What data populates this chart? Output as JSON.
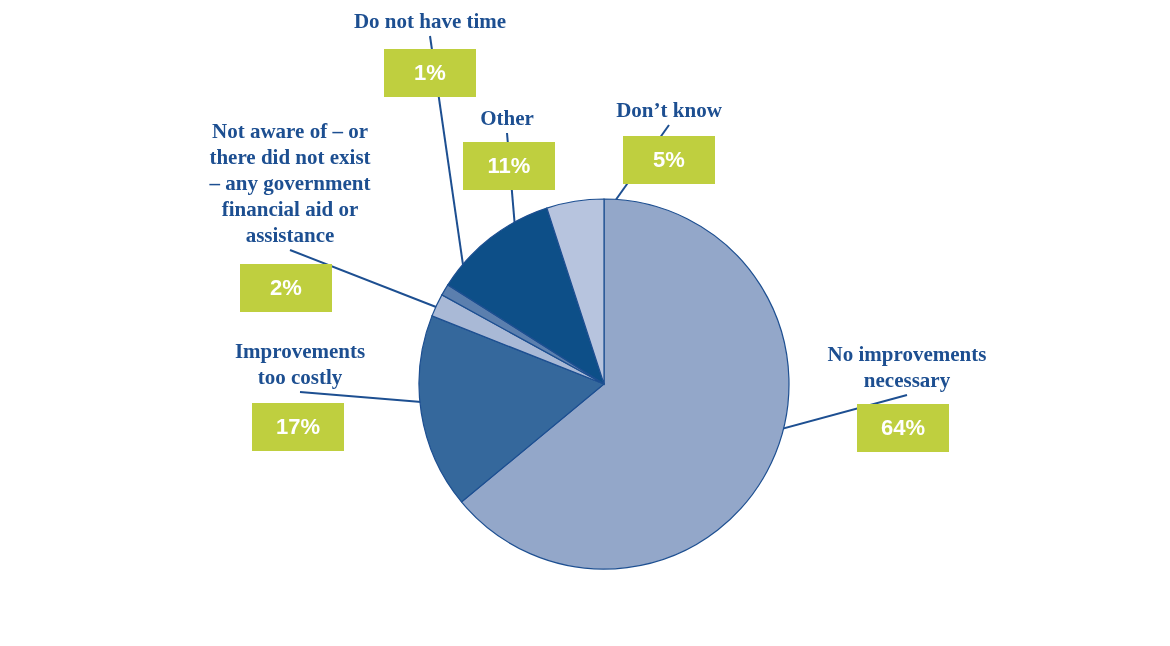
{
  "chart_data": {
    "type": "pie",
    "categories": [
      "No improvements necessary",
      "Improvements too costly",
      "Not aware of – or there did not exist – any government financial aid or assistance",
      "Do not have time",
      "Other",
      "Don’t know"
    ],
    "values": [
      64,
      17,
      2,
      1,
      11,
      5
    ],
    "value_labels": [
      "64%",
      "17%",
      "2%",
      "1%",
      "11%",
      "5%"
    ],
    "colors": [
      "#93a7c9",
      "#35689c",
      "#a9b9d6",
      "#5b7fae",
      "#0d4f88",
      "#b7c4de"
    ]
  }
}
